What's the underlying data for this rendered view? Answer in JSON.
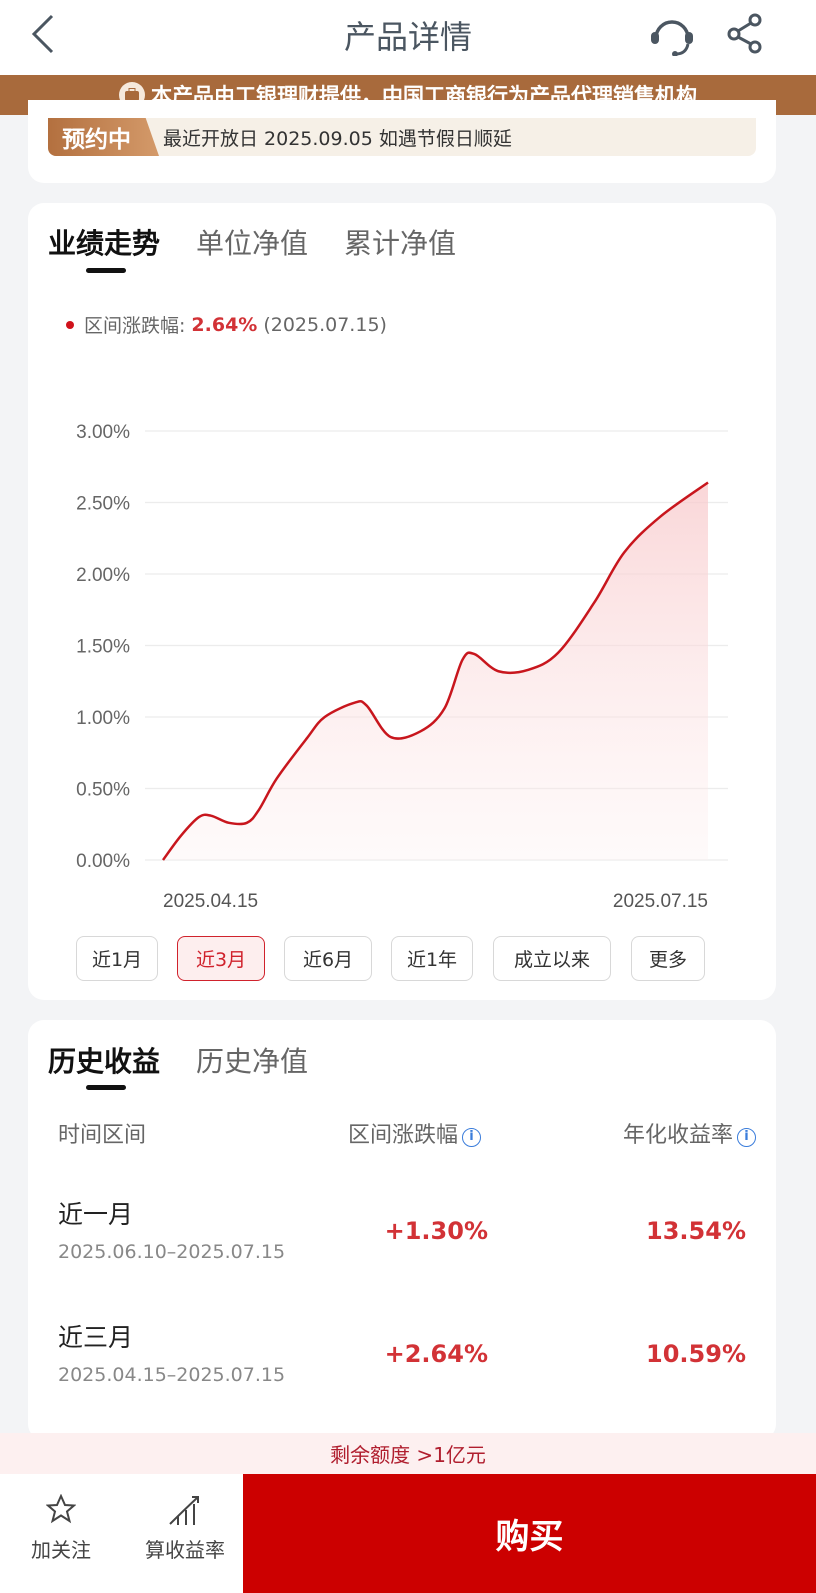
{
  "header": {
    "title": "产品详情",
    "icons": [
      "back-icon",
      "headset-icon",
      "share-icon"
    ]
  },
  "banner": {
    "text": "本产品由工银理财提供，中国工商银行为产品代理销售机构",
    "icon": "briefcase-icon"
  },
  "reservation": {
    "tag": "预约中",
    "text": "最近开放日 2025.09.05  如遇节假日顺延"
  },
  "performance": {
    "tabs": [
      {
        "label": "业绩走势",
        "active": true
      },
      {
        "label": "单位净值"
      },
      {
        "label": "累计净值"
      }
    ],
    "legend": {
      "label": "区间涨跌幅:",
      "value": "2.64%",
      "date": "(2025.07.15)"
    },
    "ranges": [
      {
        "label": "近1月"
      },
      {
        "label": "近3月",
        "active": true
      },
      {
        "label": "近6月"
      },
      {
        "label": "近1年"
      },
      {
        "label": "成立以来"
      },
      {
        "label": "更多"
      }
    ]
  },
  "chart_data": {
    "type": "area",
    "yticks": [
      "0.00%",
      "0.50%",
      "1.00%",
      "1.50%",
      "2.00%",
      "2.50%",
      "3.00%"
    ],
    "ylim": [
      0,
      3
    ],
    "xtick_labels": [
      "2025.04.15",
      "2025.07.15"
    ],
    "grid": true,
    "color": "#c8161d",
    "x": [
      "2025-04-15",
      "2025-04-18",
      "2025-04-21",
      "2025-04-23",
      "2025-04-26",
      "2025-04-29",
      "2025-05-01",
      "2025-05-04",
      "2025-05-09",
      "2025-05-12",
      "2025-05-17",
      "2025-05-19",
      "2025-05-23",
      "2025-05-28",
      "2025-06-01",
      "2025-06-04",
      "2025-06-06",
      "2025-06-10",
      "2025-06-15",
      "2025-06-20",
      "2025-06-26",
      "2025-07-01",
      "2025-07-07",
      "2025-07-15"
    ],
    "y": [
      0.0,
      0.17,
      0.3,
      0.31,
      0.26,
      0.26,
      0.35,
      0.57,
      0.85,
      1.0,
      1.1,
      1.08,
      0.86,
      0.9,
      1.06,
      1.4,
      1.44,
      1.32,
      1.33,
      1.45,
      1.8,
      2.15,
      2.4,
      2.64
    ]
  },
  "history": {
    "tabs": [
      {
        "label": "历史收益",
        "active": true
      },
      {
        "label": "历史净值"
      }
    ],
    "columns": [
      "时间区间",
      "区间涨跌幅",
      "年化收益率"
    ],
    "rows": [
      {
        "name": "近一月",
        "range": "2025.06.10–2025.07.15",
        "change": "+1.30%",
        "annual": "13.54%"
      },
      {
        "name": "近三月",
        "range": "2025.04.15–2025.07.15",
        "change": "+2.64%",
        "annual": "10.59%"
      }
    ]
  },
  "quota": {
    "text": "剩余额度 >1亿元"
  },
  "bottom": {
    "follow": "加关注",
    "calc": "算收益率",
    "buy": "购买"
  },
  "colors": {
    "accent": "#cc0000",
    "brown": "#a86a3c",
    "up": "#d23236"
  }
}
